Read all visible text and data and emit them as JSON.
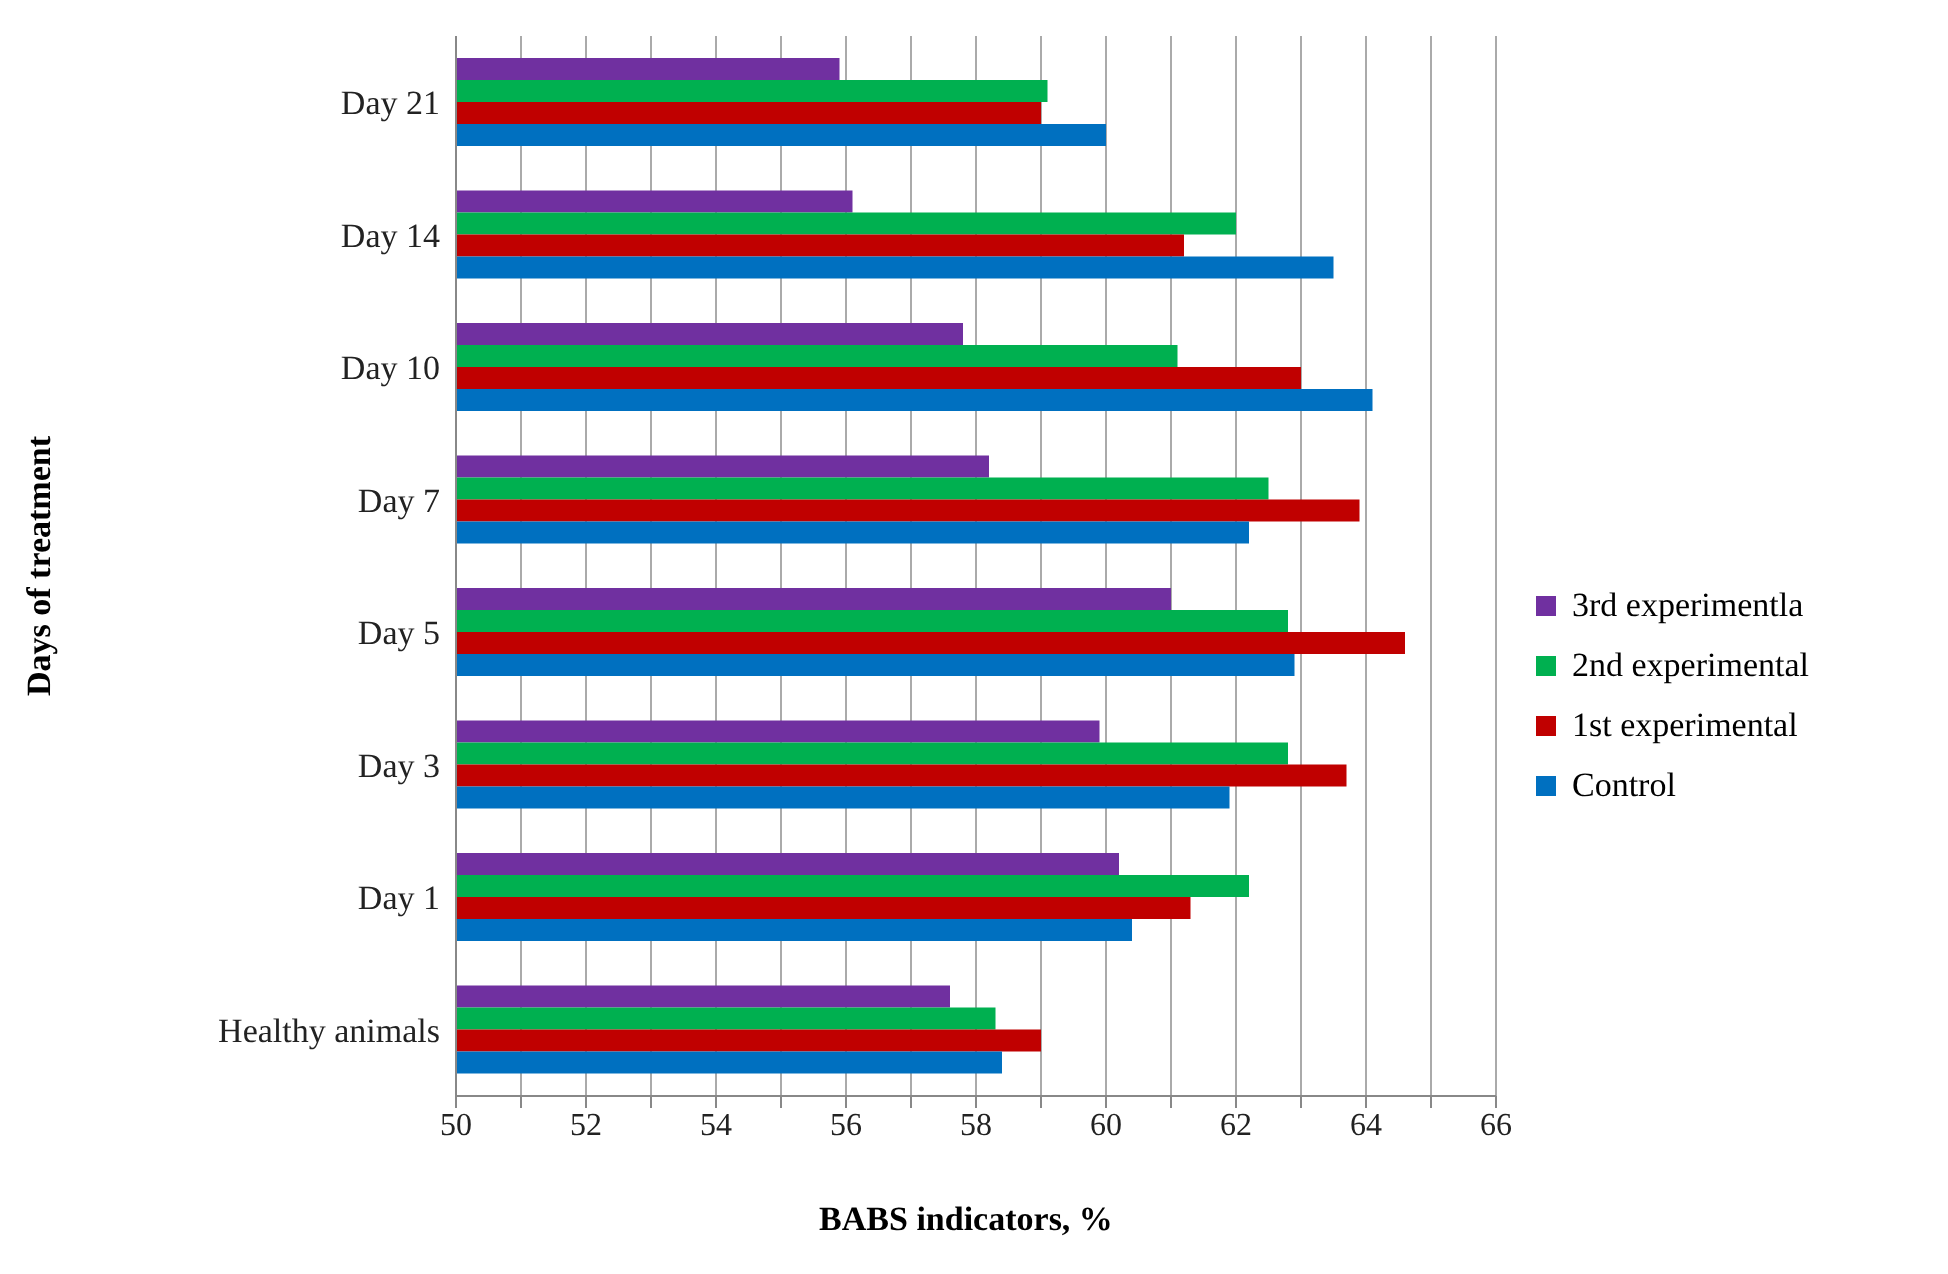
{
  "chart_data": {
    "type": "bar",
    "orientation": "horizontal",
    "xlabel": "BABS indicators, %",
    "ylabel": "Days of treatment",
    "categories": [
      "Day 21",
      "Day 14",
      "Day 10",
      "Day 7",
      "Day 5",
      "Day 3",
      "Day 1",
      "Healthy animals"
    ],
    "series": [
      {
        "name": "3rd experimentla",
        "color": "#7030a0",
        "values": [
          55.9,
          56.1,
          57.8,
          58.2,
          61.0,
          59.9,
          60.2,
          57.6
        ]
      },
      {
        "name": "2nd experimental",
        "color": "#00b050",
        "values": [
          59.1,
          62.0,
          61.1,
          62.5,
          62.8,
          62.8,
          62.2,
          58.3
        ]
      },
      {
        "name": "1st experimental",
        "color": "#c00000",
        "values": [
          59.0,
          61.2,
          63.0,
          63.9,
          64.6,
          63.7,
          61.3,
          59.0
        ]
      },
      {
        "name": "Control",
        "color": "#0070c0",
        "values": [
          60.0,
          63.5,
          64.1,
          62.2,
          62.9,
          61.9,
          60.4,
          58.4
        ]
      }
    ],
    "xlim": [
      50,
      66
    ],
    "xticks": [
      50,
      {
        "value": 51,
        "label": null
      },
      52,
      {
        "value": 53,
        "label": null
      },
      54,
      {
        "value": 55,
        "label": null
      },
      56,
      {
        "value": 57,
        "label": null
      },
      58,
      {
        "value": 59,
        "label": null
      },
      60,
      {
        "value": 61,
        "label": null
      },
      62,
      {
        "value": 63,
        "label": null
      },
      64,
      {
        "value": 65,
        "label": null
      },
      66
    ],
    "grid": "x",
    "legend": "right"
  }
}
